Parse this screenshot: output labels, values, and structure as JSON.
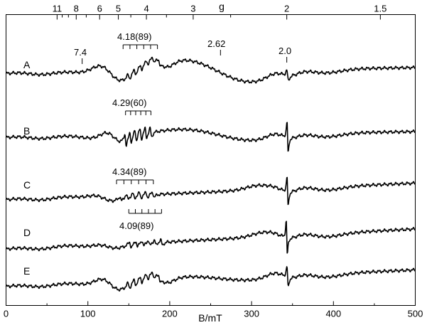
{
  "chart_data": {
    "type": "line",
    "title": "",
    "xlabel": "B/mT",
    "top_axis_label": "g",
    "xlim": [
      0,
      500
    ],
    "x_ticks": [
      0,
      100,
      200,
      300,
      400,
      500
    ],
    "g_ticks": [
      {
        "g": 11,
        "label": "11"
      },
      {
        "g": 10,
        "label": ""
      },
      {
        "g": 9,
        "label": ""
      },
      {
        "g": 8,
        "label": "8"
      },
      {
        "g": 7,
        "label": ""
      },
      {
        "g": 6,
        "label": "6"
      },
      {
        "g": 5,
        "label": "5"
      },
      {
        "g": 4.5,
        "label": ""
      },
      {
        "g": 4,
        "label": "4"
      },
      {
        "g": 3.5,
        "label": ""
      },
      {
        "g": 3,
        "label": "3"
      },
      {
        "g": 2.5,
        "label": ""
      },
      {
        "g": 2,
        "label": "2"
      },
      {
        "g": 1.5,
        "label": "1.5"
      }
    ],
    "series": [
      {
        "name": "A",
        "features": "g 7.4 shoulder, g ~5 peak, hyperfine at g 4.18 (89), broad g 2.62, g 2.0 line"
      },
      {
        "name": "B",
        "features": "strong hyperfine sextet at g 4.29 (60), broad g 2.62, sharp g 2.0 line"
      },
      {
        "name": "C",
        "features": "hyperfine at g 4.34 (89), sharp g 2.0 line"
      },
      {
        "name": "D",
        "features": "hyperfine at g 4.09 (89), sharp g 2.0 line"
      },
      {
        "name": "E",
        "features": "mixture of components, g ~5 peak, g 2.0 line"
      }
    ],
    "annotations": {
      "A_low": "7.4",
      "A_hyperfine": "4.18(89)",
      "A_broad": "2.62",
      "A_g2": "2.0",
      "B_hyperfine": "4.29(60)",
      "C_hyperfine": "4.34(89)",
      "D_hyperfine": "4.09(89)"
    },
    "grid": false,
    "legend": "none"
  }
}
